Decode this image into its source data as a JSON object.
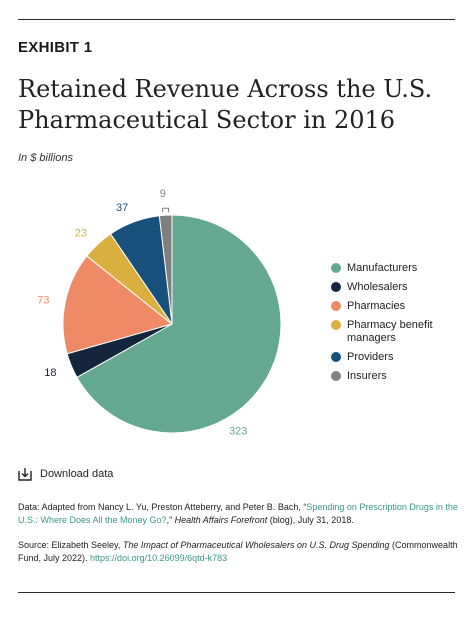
{
  "header": {
    "exhibit": "EXHIBIT 1",
    "title_line1": "Retained Revenue Across the U.S.",
    "title_line2": "Pharmaceutical Sector in 2016",
    "units": "In $ billions"
  },
  "chart_data": {
    "type": "pie",
    "title": "Retained Revenue Across the U.S. Pharmaceutical Sector in 2016",
    "units": "In $ billions",
    "start_category": "Insurers",
    "direction": "clockwise",
    "legend_position": "right",
    "slices": [
      {
        "label": "Manufacturers",
        "value": 323,
        "color": "#64a892"
      },
      {
        "label": "Wholesalers",
        "value": 18,
        "color": "#14263d"
      },
      {
        "label": "Pharmacies",
        "value": 73,
        "color": "#ef8a67"
      },
      {
        "label": "Pharmacy benefit managers",
        "value": 23,
        "color": "#d9b03f"
      },
      {
        "label": "Providers",
        "value": 37,
        "color": "#17507a"
      },
      {
        "label": "Insurers",
        "value": 9,
        "color": "#7f7f7f"
      }
    ]
  },
  "legend": {
    "items": [
      {
        "label": "Manufacturers",
        "color": "#64a892"
      },
      {
        "label": "Wholesalers",
        "color": "#14263d"
      },
      {
        "label": "Pharmacies",
        "color": "#ef8a67"
      },
      {
        "label": "Pharmacy benefit\nmanagers",
        "color": "#d9b03f"
      },
      {
        "label": "Providers",
        "color": "#17507a"
      },
      {
        "label": "Insurers",
        "color": "#7f7f7f"
      }
    ]
  },
  "download": {
    "label": "Download data",
    "icon": "download-icon"
  },
  "notes": {
    "data_prefix": "Data: Adapted from Nancy L. Yu, Preston Atteberry, and Peter B. Bach, “",
    "data_link": "Spending on Prescription Drugs in the U.S.: Where Does All the Money Go?",
    "data_after_link": ",” ",
    "data_journal": "Health Affairs Forefront",
    "data_suffix": " (blog), July 31, 2018.",
    "source_prefix": "Source: Elizabeth Seeley, ",
    "source_title": "The Impact of Pharmaceutical Wholesalers on U.S. Drug Spending",
    "source_suffix": " (Commonwealth Fund, July 2022). ",
    "source_link": "https://doi.org/10.26099/6qtd-k783"
  }
}
